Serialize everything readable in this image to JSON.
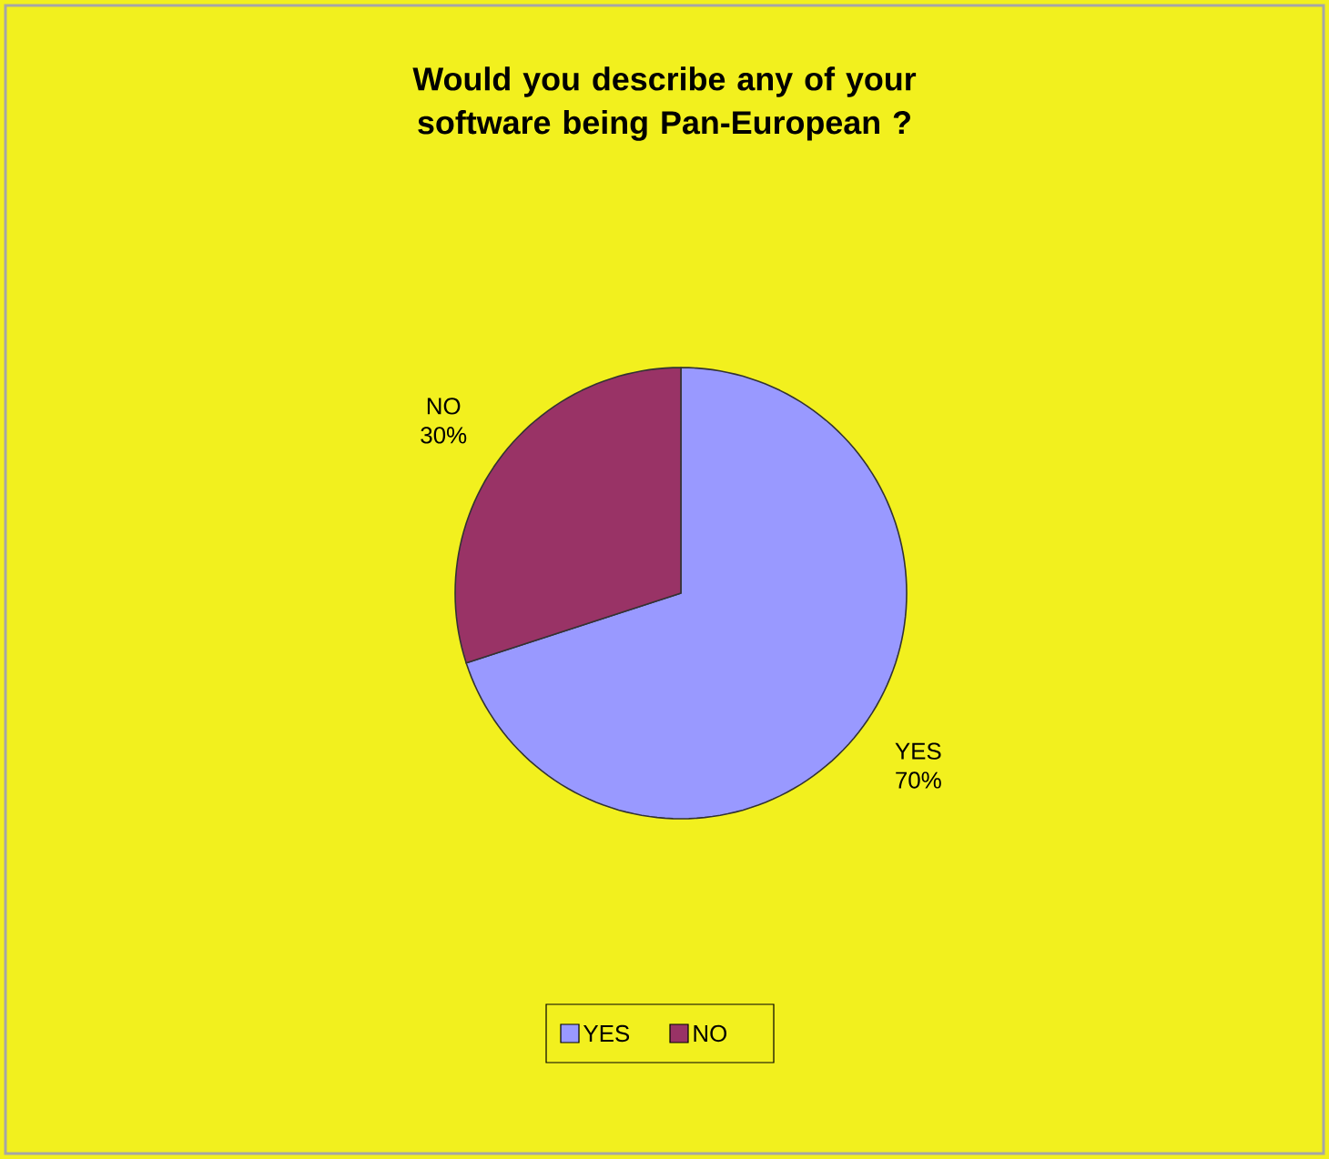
{
  "chart_data": {
    "type": "pie",
    "title": "Would you describe any of your software being Pan-European ?",
    "categories": [
      "YES",
      "NO"
    ],
    "values": [
      70,
      30
    ],
    "value_labels": [
      "70%",
      "30%"
    ],
    "colors": [
      "#9999ff",
      "#993366"
    ],
    "legend": "bottom"
  }
}
